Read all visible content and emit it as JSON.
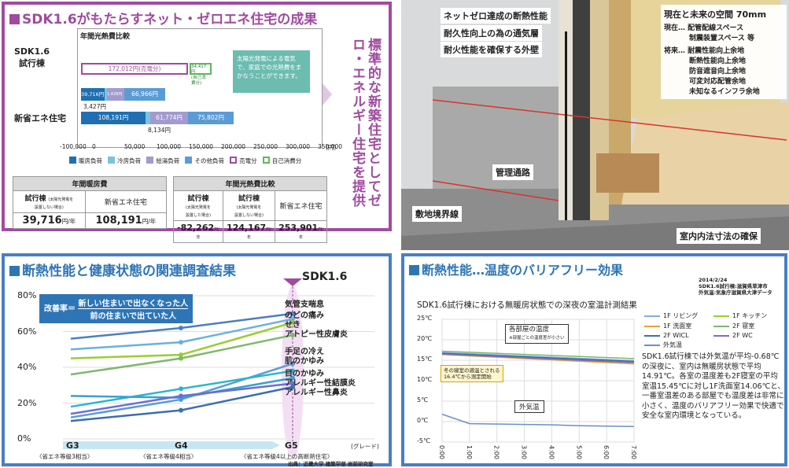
{
  "p1": {
    "title": "SDK1.6がもたらすネット・ゼロエネ住宅の成果",
    "chart_caption": "年間光熱費比較",
    "rows": [
      {
        "label": "SDK1.6\n試行棟",
        "segments": [
          "39,716円",
          "1,428円",
          "66,966円"
        ],
        "total": "172,012円(売電分)",
        "self": "34,417円\n(自己消費分)",
        "extra": "3,427円"
      },
      {
        "label": "新省エネ住宅",
        "segments": [
          "108,191円",
          "61,774円",
          "75,802円"
        ],
        "extra": "8,134円"
      }
    ],
    "note": "太陽光発電による電気で、家庭での光熱費をまかなうことができます。",
    "x_ticks": [
      "-100,000",
      "0",
      "50,000",
      "100,000",
      "150,000",
      "200,000",
      "250,000",
      "300,000",
      "350,000"
    ],
    "x_unit": "(円)",
    "legend": [
      "暖房負荷",
      "冷房負荷",
      "給湯負荷",
      "その他負荷",
      "売電分",
      "自己消費分"
    ],
    "legend_colors": [
      "#1f6fb2",
      "#79c3e0",
      "#a39ad0",
      "#5b9bd5",
      "#a04ba0",
      "#5cb85c"
    ],
    "vertical_text": "標準的な新築住宅としてゼロ・エネルギー住宅を提供",
    "t1": {
      "header": "年間暖房費",
      "c1": "試行棟",
      "c1s": "(太陽光発電を\n設置しない場合)",
      "c2": "新省エネ住宅",
      "v1": "39,716",
      "v2": "108,191",
      "unit": "円/年"
    },
    "t2": {
      "header": "年間光熱費比較",
      "c1": "試行棟",
      "c1s": "(太陽光発電を\n設置した場合)",
      "c2": "試行棟",
      "c2s": "(太陽光発電を\n設置しない場合)",
      "c3": "新省エネ住宅",
      "v1": "-82,262",
      "v2": "124,167",
      "v3": "253,901",
      "unit": "円/年"
    }
  },
  "p2": {
    "labels": [
      "ネットゼロ達成の断熱性能",
      "耐久性向上の為の通気層",
      "耐火性能を確保する外壁",
      "管理通路",
      "敷地境界線",
      "室内内法寸法の確保"
    ],
    "box_title": "現在と未来の空間",
    "box_dim": "70mm",
    "box_now_label": "現在…",
    "box_now": [
      "配管配線スペース",
      "制震装置スペース 等"
    ],
    "box_future_label": "将来…",
    "box_future": [
      "耐震性能向上余地",
      "断熱性能向上余地",
      "防音遮音向上余地",
      "可変対応配管余地",
      "未知なるインフラ余地"
    ]
  },
  "p3": {
    "title": "断熱性能と健康状態の関連調査結果",
    "marker": "SDK1.6",
    "box_label": "改善率＝",
    "box_num": "新しい住まいで出なくなった人",
    "box_den": "前の住まいで出ていた人",
    "y_ticks": [
      "0%",
      "20%",
      "40%",
      "60%",
      "80%"
    ],
    "x_ticks": [
      "G3",
      "G4",
      "G5"
    ],
    "x_sub": [
      "〈省エネ等級3相当〉",
      "〈省エネ等級4相当〉",
      "〈省エネ等級4以上の高断熱住宅〉"
    ],
    "x_label": "(グレード)",
    "series_labels": [
      "気管支喘息",
      "のどの痛み",
      "せき",
      "アトピー性皮膚炎",
      "手足の冷え",
      "肌のかゆみ",
      "目のかゆみ",
      "アレルギー性結膜炎",
      "アレルギー性鼻炎"
    ],
    "source": "出典：近畿大学 建築学部 岩前研究室"
  },
  "p4": {
    "title": "断熱性能…温度のバリアフリー効果",
    "date_note": "2014/2/24\nSDK1.6試行棟:滋賀県草津市\n外気温:気象庁滋賀県大津データ",
    "subtitle": "SDK1.6試行棟における無暖房状態での深夜の室温計測結果",
    "y_ticks": [
      "25℃",
      "20℃",
      "15℃",
      "10℃",
      "5℃",
      "0℃",
      "-5℃"
    ],
    "x_ticks": [
      "0:00",
      "1:00",
      "2:00",
      "3:00",
      "4:00",
      "5:00",
      "6:00",
      "7:00"
    ],
    "callout_rooms": "各部屋の温度",
    "callout_rooms_sub": "※部屋ごとの温度差が小さい",
    "callout_start": "冬の寝室の適温とされる\n16.4℃から測定開始",
    "callout_out": "外気温",
    "legend": [
      "1F リビング",
      "1F キッチン",
      "1F 洗面室",
      "2F 寝室",
      "2F WICL",
      "2F WC",
      "外気温"
    ],
    "legend_colors": [
      "#7fb0e0",
      "#9acd32",
      "#e8a23a",
      "#7cb96a",
      "#3a6fb0",
      "#8a6ab0",
      "#6a8fc8"
    ],
    "body": "SDK1.6試行棟では外気温が平均-0.68℃の深夜に、室内は無暖房状態で平均14.91℃。各室の温度差も2F寝室の平均室温15.45℃に対し1F洗面室14.06℃と、一番室温差のある部屋でも温度差は非常に小さく、温度のバリアフリー効果で快適で安全な室内環境となっている。"
  }
}
